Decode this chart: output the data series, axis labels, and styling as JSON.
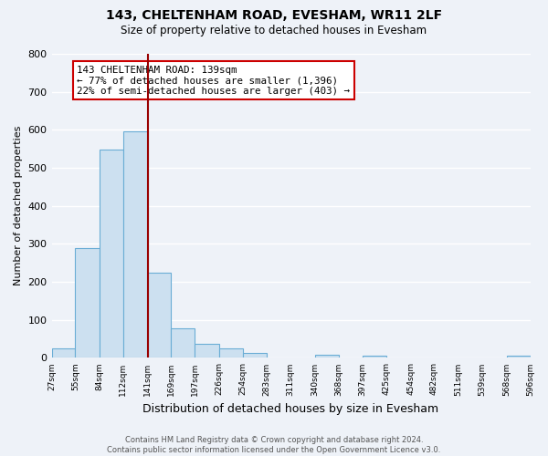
{
  "title1": "143, CHELTENHAM ROAD, EVESHAM, WR11 2LF",
  "title2": "Size of property relative to detached houses in Evesham",
  "xlabel": "Distribution of detached houses by size in Evesham",
  "ylabel": "Number of detached properties",
  "bar_edges": [
    27,
    55,
    84,
    112,
    141,
    169,
    197,
    226,
    254,
    283,
    311,
    340,
    368,
    397,
    425,
    454,
    482,
    511,
    539,
    568,
    596
  ],
  "bar_heights": [
    25,
    290,
    548,
    597,
    225,
    78,
    37,
    25,
    12,
    0,
    0,
    8,
    0,
    7,
    0,
    0,
    0,
    0,
    0,
    7
  ],
  "bar_color": "#cce0f0",
  "bar_edge_color": "#6aadd5",
  "property_line_x": 141,
  "property_line_color": "#990000",
  "annotation_text": "143 CHELTENHAM ROAD: 139sqm\n← 77% of detached houses are smaller (1,396)\n22% of semi-detached houses are larger (403) →",
  "annotation_box_facecolor": "#ffffff",
  "annotation_box_edgecolor": "#cc0000",
  "ylim": [
    0,
    800
  ],
  "yticks": [
    0,
    100,
    200,
    300,
    400,
    500,
    600,
    700,
    800
  ],
  "tick_labels": [
    "27sqm",
    "55sqm",
    "84sqm",
    "112sqm",
    "141sqm",
    "169sqm",
    "197sqm",
    "226sqm",
    "254sqm",
    "283sqm",
    "311sqm",
    "340sqm",
    "368sqm",
    "397sqm",
    "425sqm",
    "454sqm",
    "482sqm",
    "511sqm",
    "539sqm",
    "568sqm",
    "596sqm"
  ],
  "footer1": "Contains HM Land Registry data © Crown copyright and database right 2024.",
  "footer2": "Contains public sector information licensed under the Open Government Licence v3.0.",
  "bg_color": "#eef2f8",
  "grid_color": "#ffffff",
  "fig_width": 6.0,
  "fig_height": 5.0
}
